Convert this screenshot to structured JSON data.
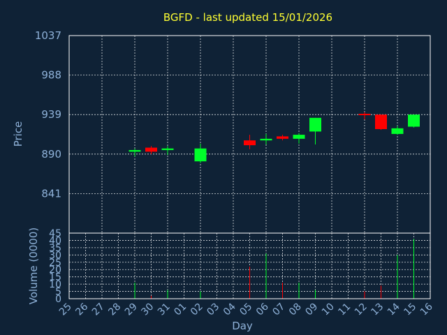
{
  "chart_data": {
    "type": "candlestick",
    "title": "BGFD - last updated 15/01/2026",
    "xlabel": "Day",
    "price_panel": {
      "ylabel": "Price",
      "ylim": [
        792,
        1037
      ],
      "yticks": [
        1037,
        988,
        939,
        890,
        841
      ],
      "grid": true
    },
    "volume_panel": {
      "ylabel": "Volume (0000)",
      "ylim": [
        0,
        45
      ],
      "yticks": [
        45,
        40,
        35,
        30,
        25,
        20,
        15,
        10,
        5,
        0
      ],
      "grid": true
    },
    "up_color": "#00ff2a",
    "down_color": "#ff0000",
    "categories": [
      "25",
      "26",
      "27",
      "28",
      "29",
      "30",
      "31",
      "01",
      "02",
      "03",
      "04",
      "05",
      "06",
      "07",
      "08",
      "09",
      "10",
      "11",
      "12",
      "13",
      "14",
      "15",
      "16"
    ],
    "candles": [
      {
        "x": "29",
        "open": 893,
        "high": 897,
        "low": 887,
        "close": 895,
        "volume": 11
      },
      {
        "x": "30",
        "open": 898,
        "high": 900,
        "low": 890,
        "close": 893,
        "volume": 2
      },
      {
        "x": "31",
        "open": 895,
        "high": 900,
        "low": 889,
        "close": 897,
        "volume": 6
      },
      {
        "x": "02",
        "open": 881,
        "high": 903,
        "low": 879,
        "close": 897,
        "volume": 5
      },
      {
        "x": "05",
        "open": 907,
        "high": 914,
        "low": 896,
        "close": 901,
        "volume": 22
      },
      {
        "x": "06",
        "open": 907,
        "high": 915,
        "low": 902,
        "close": 909,
        "volume": 31
      },
      {
        "x": "07",
        "open": 912,
        "high": 914,
        "low": 907,
        "close": 909,
        "volume": 11
      },
      {
        "x": "08",
        "open": 909,
        "high": 916,
        "low": 903,
        "close": 914,
        "volume": 11
      },
      {
        "x": "09",
        "open": 918,
        "high": 935,
        "low": 902,
        "close": 935,
        "volume": 6
      },
      {
        "x": "12",
        "open": 940,
        "high": 942,
        "low": 933,
        "close": 939,
        "volume": 5
      },
      {
        "x": "13",
        "open": 939,
        "high": 939,
        "low": 920,
        "close": 921,
        "volume": 9
      },
      {
        "x": "14",
        "open": 915,
        "high": 925,
        "low": 914,
        "close": 922,
        "volume": 30
      },
      {
        "x": "15",
        "open": 924,
        "high": 939,
        "low": 923,
        "close": 939,
        "volume": 41
      }
    ]
  }
}
